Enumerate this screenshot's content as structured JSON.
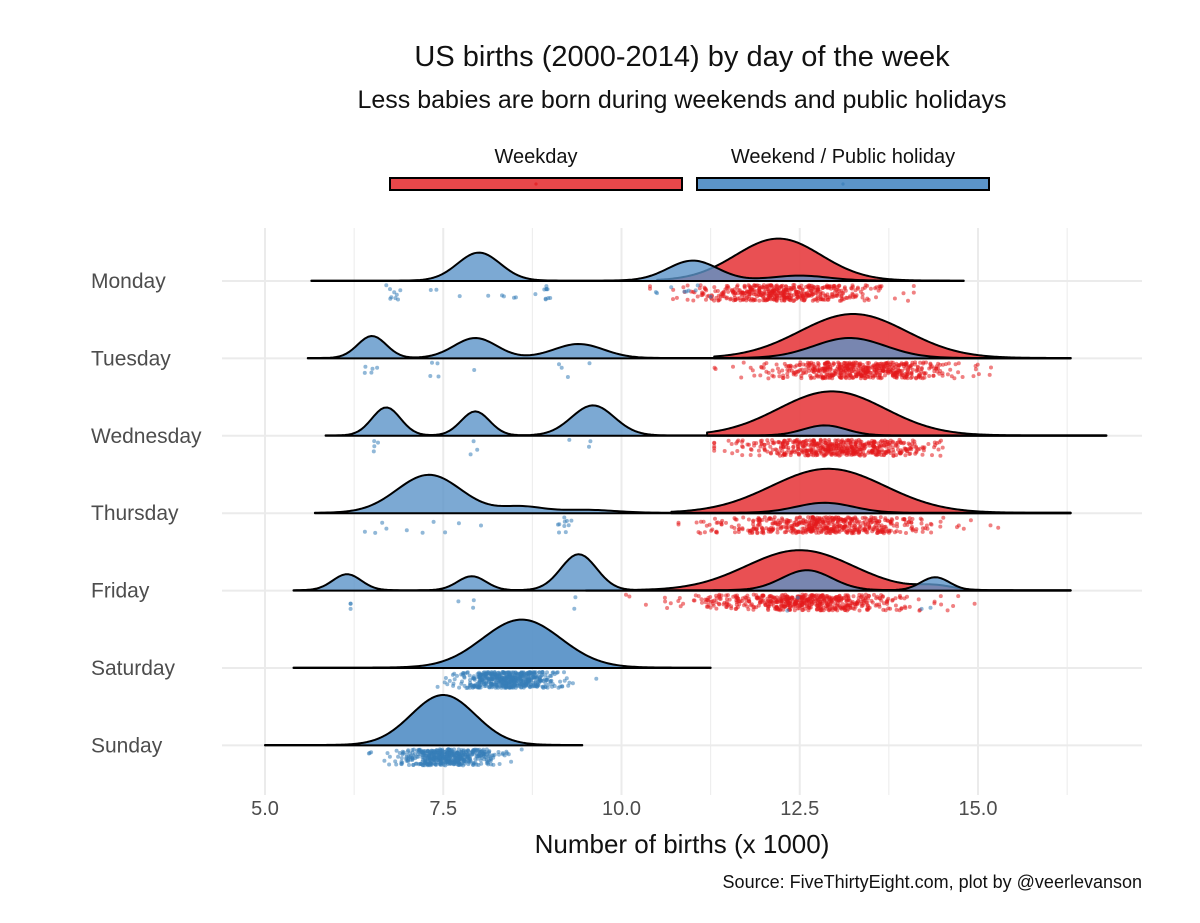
{
  "chart_data": {
    "type": "ridgeline",
    "title": "US births (2000-2014) by day of the week",
    "subtitle": "Less babies are born during weekends and public holidays",
    "xlabel": "Number of births (x 1000)",
    "caption": "Source: FiveThirtyEight.com, plot by @veerlevanson",
    "xlim": [
      4.3,
      16.8
    ],
    "x_ticks": [
      "5.0",
      "7.5",
      "10.0",
      "12.5",
      "15.0"
    ],
    "x_tick_values": [
      5.0,
      7.5,
      10.0,
      12.5,
      15.0
    ],
    "grid": true,
    "legend_position": "top",
    "legend": [
      {
        "key": "weekday",
        "label": "Weekday",
        "color": "#E41A1C"
      },
      {
        "key": "weekend",
        "label": "Weekend / Public holiday",
        "color": "#377EB8"
      }
    ],
    "colors": {
      "weekday": "#E41A1C",
      "weekend": "#377EB8",
      "weekday_fill": "#E8474A",
      "weekend_fill": "#5B94C8",
      "outline": "#000000",
      "grid": "#EBEBEB"
    },
    "categories": [
      "Monday",
      "Tuesday",
      "Wednesday",
      "Thursday",
      "Friday",
      "Saturday",
      "Sunday"
    ],
    "days": [
      {
        "day": "Monday",
        "weekend": {
          "range": [
            5.65,
            14.8
          ],
          "peaks": [
            [
              8.0,
              0.3,
              0.28
            ],
            [
              11.0,
              0.35,
              0.2
            ],
            [
              12.5,
              0.4,
              0.05
            ]
          ],
          "points": {
            "n": 36,
            "spread": [
              [
                7.3,
                8.8
              ],
              [
                10.4,
                11.3
              ],
              [
                6.7,
                6.9
              ],
              [
                8.9,
                9.0
              ]
            ]
          }
        },
        "weekday": {
          "range": [
            10.5,
            14.6
          ],
          "peaks": [
            [
              12.2,
              0.6,
              0.42
            ]
          ],
          "points": {
            "n": 470,
            "center": 12.3,
            "sd": 0.65,
            "min": 10.4,
            "max": 14.1
          }
        }
      },
      {
        "day": "Tuesday",
        "weekend": {
          "range": [
            5.6,
            16.3
          ],
          "peaks": [
            [
              6.5,
              0.2,
              0.22
            ],
            [
              7.95,
              0.3,
              0.2
            ],
            [
              9.4,
              0.35,
              0.14
            ],
            [
              13.2,
              0.5,
              0.2
            ]
          ],
          "points": {
            "n": 14,
            "spread": [
              [
                6.4,
                6.6
              ],
              [
                7.3,
                8.0
              ],
              [
                9.1,
                9.6
              ]
            ]
          }
        },
        "weekday": {
          "range": [
            11.3,
            16.3
          ],
          "peaks": [
            [
              13.25,
              0.75,
              0.44
            ]
          ],
          "points": {
            "n": 520,
            "center": 13.3,
            "sd": 0.7,
            "min": 11.3,
            "max": 15.8
          }
        }
      },
      {
        "day": "Wednesday",
        "weekend": {
          "range": [
            5.85,
            16.8
          ],
          "peaks": [
            [
              6.7,
              0.2,
              0.28
            ],
            [
              7.95,
              0.2,
              0.24
            ],
            [
              9.6,
              0.3,
              0.3
            ],
            [
              12.85,
              0.3,
              0.1
            ]
          ],
          "points": {
            "n": 10,
            "spread": [
              [
                6.5,
                6.6
              ],
              [
                7.7,
                8.0
              ],
              [
                9.2,
                9.6
              ]
            ]
          }
        },
        "weekday": {
          "range": [
            11.2,
            16.8
          ],
          "peaks": [
            [
              12.95,
              0.75,
              0.44
            ]
          ],
          "points": {
            "n": 520,
            "center": 13.0,
            "sd": 0.65,
            "min": 11.3,
            "max": 16.1
          }
        }
      },
      {
        "day": "Thursday",
        "weekend": {
          "range": [
            5.7,
            16.3
          ],
          "peaks": [
            [
              7.3,
              0.45,
              0.38
            ],
            [
              8.6,
              0.3,
              0.06
            ],
            [
              9.5,
              0.4,
              0.03
            ],
            [
              12.85,
              0.4,
              0.1
            ]
          ],
          "points": {
            "n": 20,
            "spread": [
              [
                6.3,
                8.2
              ],
              [
                9.1,
                9.3
              ]
            ]
          }
        },
        "weekday": {
          "range": [
            10.7,
            16.3
          ],
          "peaks": [
            [
              12.9,
              0.8,
              0.44
            ]
          ],
          "points": {
            "n": 520,
            "center": 12.9,
            "sd": 0.7,
            "min": 10.8,
            "max": 15.6
          }
        }
      },
      {
        "day": "Friday",
        "weekend": {
          "range": [
            5.4,
            16.3
          ],
          "peaks": [
            [
              6.15,
              0.2,
              0.16
            ],
            [
              7.9,
              0.2,
              0.14
            ],
            [
              9.4,
              0.25,
              0.36
            ],
            [
              12.6,
              0.35,
              0.2
            ],
            [
              14.4,
              0.2,
              0.13
            ]
          ],
          "points": {
            "n": 12,
            "spread": [
              [
                6.2,
                6.2
              ],
              [
                7.7,
                8.0
              ],
              [
                9.2,
                9.5
              ],
              [
                12.2,
                12.9
              ],
              [
                14.2,
                14.5
              ]
            ]
          }
        },
        "weekday": {
          "range": [
            9.5,
            16.3
          ],
          "peaks": [
            [
              12.5,
              0.75,
              0.4
            ],
            [
              14.4,
              0.25,
              0.04
            ]
          ],
          "points": {
            "n": 560,
            "center": 12.6,
            "sd": 0.75,
            "min": 9.6,
            "max": 15.5
          }
        }
      },
      {
        "day": "Saturday",
        "weekend": {
          "range": [
            5.4,
            11.25
          ],
          "peaks": [
            [
              8.6,
              0.55,
              0.48
            ]
          ],
          "points": {
            "n": 520,
            "center": 8.4,
            "sd": 0.35,
            "min": 6.2,
            "max": 10.4
          }
        },
        "weekday": null
      },
      {
        "day": "Sunday",
        "weekend": {
          "range": [
            5.0,
            9.45
          ],
          "peaks": [
            [
              7.5,
              0.45,
              0.5
            ]
          ],
          "points": {
            "n": 520,
            "center": 7.55,
            "sd": 0.35,
            "min": 5.8,
            "max": 8.6
          }
        },
        "weekday": null
      }
    ]
  }
}
